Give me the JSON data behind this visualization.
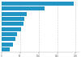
{
  "values": [
    195,
    115,
    68,
    62,
    58,
    52,
    42,
    38,
    30,
    22
  ],
  "bar_color": "#2196c4",
  "background_color": "#ffffff",
  "grid_color": "#cccccc",
  "xlim": [
    0,
    210
  ],
  "xticks": [
    0,
    50,
    100,
    150,
    200
  ],
  "bar_height": 0.75,
  "figsize": [
    1.0,
    0.71
  ],
  "dpi": 100
}
